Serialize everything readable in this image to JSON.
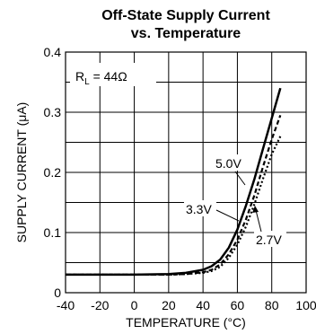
{
  "chart_data": {
    "type": "line",
    "title": [
      "Off-State Supply Current",
      "vs. Temperature"
    ],
    "xlabel": "TEMPERATURE (°C)",
    "ylabel": "SUPPLY CURRENT (μA)",
    "xlim": [
      -40,
      100
    ],
    "ylim": [
      0,
      0.4
    ],
    "x_ticks": [
      "-40",
      "-20",
      "0",
      "20",
      "40",
      "60",
      "80",
      "100"
    ],
    "y_ticks": [
      "0",
      "0.1",
      "0.2",
      "0.3",
      "0.4"
    ],
    "grid": true,
    "annotation": {
      "prefix": "R",
      "subscript": "L",
      "suffix": " = 44Ω"
    },
    "series": [
      {
        "name": "5.0V",
        "style": "solid",
        "x": [
          -40,
          -20,
          0,
          20,
          30,
          40,
          45,
          50,
          55,
          60,
          65,
          70,
          75,
          80,
          85
        ],
        "y": [
          0.03,
          0.03,
          0.03,
          0.031,
          0.033,
          0.038,
          0.044,
          0.055,
          0.075,
          0.105,
          0.145,
          0.19,
          0.24,
          0.29,
          0.34
        ]
      },
      {
        "name": "3.3V",
        "style": "dashed",
        "x": [
          -40,
          -20,
          0,
          20,
          30,
          40,
          45,
          50,
          55,
          60,
          65,
          70,
          75,
          80,
          85
        ],
        "y": [
          0.03,
          0.03,
          0.03,
          0.03,
          0.031,
          0.034,
          0.038,
          0.047,
          0.064,
          0.088,
          0.122,
          0.163,
          0.21,
          0.255,
          0.295
        ]
      },
      {
        "name": "2.7V",
        "style": "dotted",
        "x": [
          -40,
          -20,
          0,
          20,
          30,
          40,
          45,
          50,
          55,
          60,
          65,
          70,
          75,
          80,
          85
        ],
        "y": [
          0.03,
          0.03,
          0.03,
          0.03,
          0.031,
          0.033,
          0.036,
          0.043,
          0.058,
          0.08,
          0.11,
          0.148,
          0.19,
          0.23,
          0.26
        ]
      }
    ],
    "series_labels": [
      "5.0V",
      "3.3V",
      "2.7V"
    ]
  }
}
